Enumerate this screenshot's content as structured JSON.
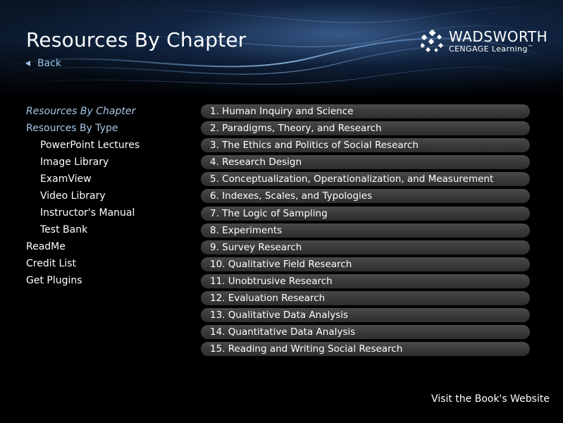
{
  "header": {
    "title": "Resources By Chapter",
    "back_label": "Back",
    "logo": {
      "brand": "WADSWORTH",
      "sub": "CENGAGE Learning",
      "tm": "™",
      "icon": "wadsworth-dots-icon"
    }
  },
  "nav": {
    "items": [
      {
        "label": "Resources By Chapter"
      },
      {
        "label": "Resources By Type"
      },
      {
        "label": "PowerPoint Lectures"
      },
      {
        "label": "Image Library"
      },
      {
        "label": "ExamView"
      },
      {
        "label": "Video Library"
      },
      {
        "label": "Instructor's Manual"
      },
      {
        "label": "Test Bank"
      },
      {
        "label": "ReadMe"
      },
      {
        "label": "Credit List"
      },
      {
        "label": "Get Plugins"
      }
    ]
  },
  "chapters": [
    "1. Human Inquiry and Science",
    "2. Paradigms, Theory, and Research",
    "3. The Ethics and Politics of Social Research",
    "4. Research Design",
    "5. Conceptualization, Operationalization, and Measurement",
    "6. Indexes, Scales, and Typologies",
    "7. The Logic of Sampling",
    "8. Experiments",
    "9. Survey Research",
    "10. Qualitative Field Research",
    "11. Unobtrusive Research",
    "12. Evaluation Research",
    "13. Qualitative Data Analysis",
    "14. Quantitative Data Analysis",
    "15. Reading and Writing Social Research"
  ],
  "footer": {
    "website_label": "Visit the Book's Website"
  },
  "colors": {
    "accent": "#9ec3e8",
    "chapter_bg": "#3d3d3d",
    "background": "#000000"
  }
}
